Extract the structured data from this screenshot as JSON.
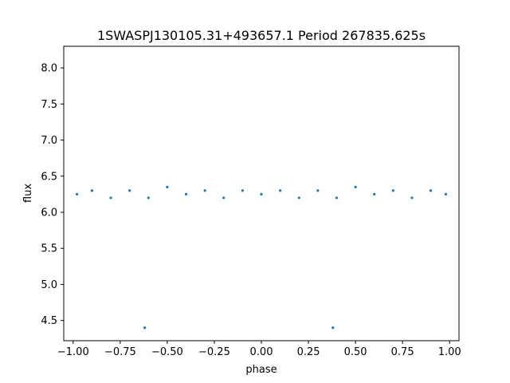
{
  "chart_data": {
    "type": "scatter",
    "title": "1SWASPJ130105.31+493657.1 Period 267835.625s",
    "xlabel": "phase",
    "ylabel": "flux",
    "xlim": [
      -1.05,
      1.05
    ],
    "ylim": [
      4.22,
      8.3
    ],
    "xticks": [
      -1.0,
      -0.75,
      -0.5,
      -0.25,
      0.0,
      0.25,
      0.5,
      0.75,
      1.0
    ],
    "xtick_labels": [
      "−1.00",
      "−0.75",
      "−0.50",
      "−0.25",
      "0.00",
      "0.25",
      "0.50",
      "0.75",
      "1.00"
    ],
    "yticks": [
      4.5,
      5.0,
      5.5,
      6.0,
      6.5,
      7.0,
      7.5,
      8.0
    ],
    "ytick_labels": [
      "4.5",
      "5.0",
      "5.5",
      "6.0",
      "6.5",
      "7.0",
      "7.5",
      "8.0"
    ],
    "grid": false,
    "marker_color": "#1f77b4",
    "series": [
      {
        "points": [
          [
            -0.98,
            6.25
          ],
          [
            -0.9,
            6.3
          ],
          [
            -0.8,
            6.2
          ],
          [
            -0.7,
            6.3
          ],
          [
            -0.62,
            4.4
          ],
          [
            -0.6,
            6.2
          ],
          [
            -0.5,
            6.35
          ],
          [
            -0.4,
            6.25
          ],
          [
            -0.3,
            6.3
          ],
          [
            -0.2,
            6.2
          ],
          [
            -0.1,
            6.3
          ],
          [
            0.0,
            6.25
          ],
          [
            0.1,
            6.3
          ],
          [
            0.2,
            6.2
          ],
          [
            0.3,
            6.3
          ],
          [
            0.38,
            4.4
          ],
          [
            0.4,
            6.2
          ],
          [
            0.5,
            6.35
          ],
          [
            0.6,
            6.25
          ],
          [
            0.7,
            6.3
          ],
          [
            0.8,
            6.2
          ],
          [
            0.9,
            6.3
          ],
          [
            0.98,
            6.25
          ]
        ]
      }
    ]
  }
}
